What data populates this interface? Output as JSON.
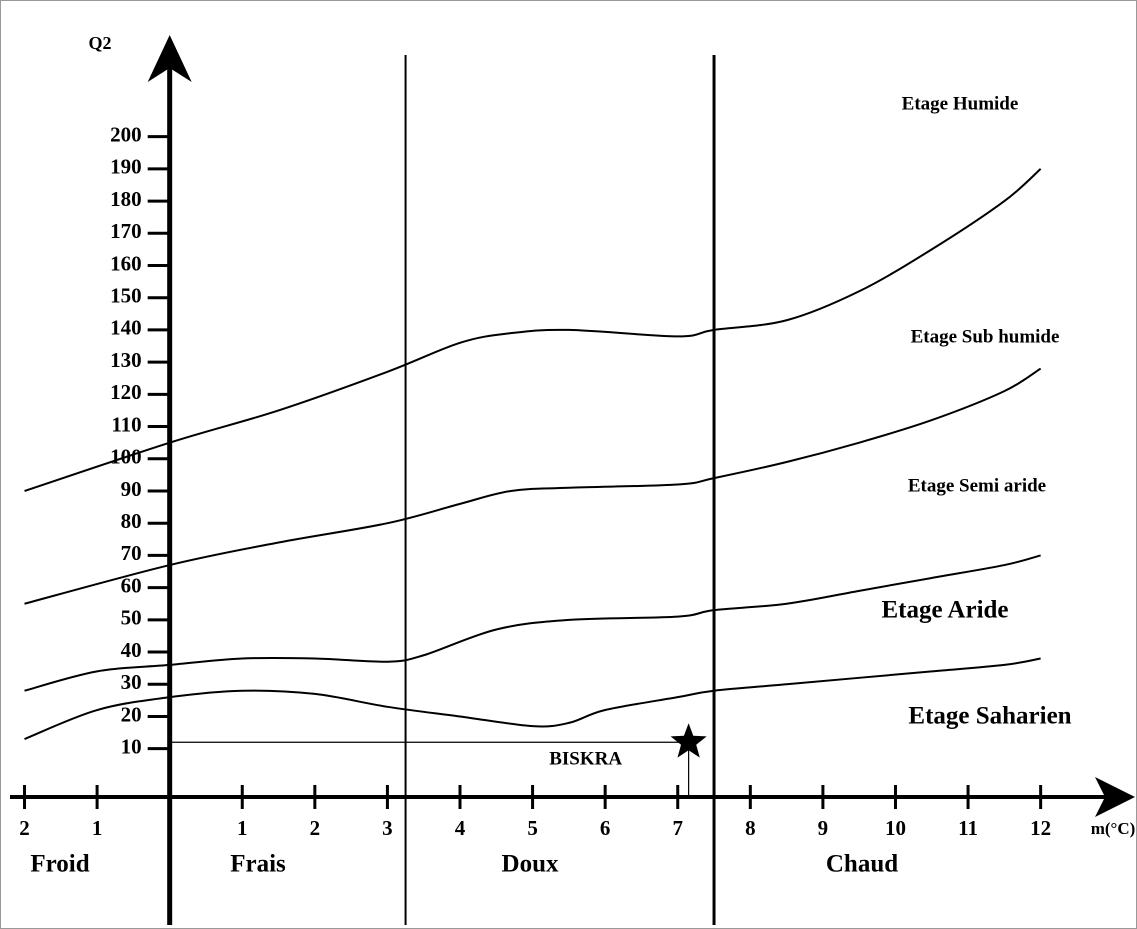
{
  "chart_data": {
    "type": "line",
    "xlabel": "m(°C)",
    "ylabel": "Q2",
    "xlim": [
      -2.2,
      13.3
    ],
    "ylim": [
      -5,
      230
    ],
    "xticks": [
      {
        "value": -2,
        "label": "2"
      },
      {
        "value": -1,
        "label": "1"
      },
      1,
      2,
      3,
      4,
      5,
      6,
      7,
      8,
      9,
      10,
      11,
      12
    ],
    "yticks": [
      10,
      20,
      30,
      40,
      50,
      60,
      70,
      80,
      90,
      100,
      110,
      120,
      130,
      140,
      150,
      160,
      170,
      180,
      190,
      200
    ],
    "color": "#000000",
    "series": [
      {
        "x": [
          -2,
          0,
          1.5,
          3,
          4,
          4.7,
          5.5,
          7,
          7.5,
          8.5,
          9.5,
          10.5,
          11.5,
          12
        ],
        "values": [
          90,
          105,
          115,
          127,
          136,
          139,
          140,
          138,
          140,
          143,
          152,
          165,
          180,
          190
        ]
      },
      {
        "x": [
          -2,
          0,
          1.5,
          3,
          4,
          4.7,
          5.5,
          7,
          7.5,
          8.5,
          9.5,
          10.5,
          11.5,
          12
        ],
        "values": [
          55,
          67,
          74,
          80,
          86,
          90,
          91,
          92,
          94,
          99,
          105,
          112,
          121,
          128
        ]
      },
      {
        "x": [
          -2,
          -1,
          0,
          1,
          2,
          3,
          3.5,
          4.5,
          5.5,
          7,
          7.5,
          8.5,
          9.5,
          10.5,
          11.5,
          12
        ],
        "values": [
          28,
          34,
          36,
          38,
          38,
          37,
          39,
          47,
          50,
          51,
          53,
          55,
          59,
          63,
          67,
          70
        ]
      },
      {
        "x": [
          -2,
          -1,
          0,
          1,
          2,
          3,
          4,
          5,
          5.5,
          6,
          7,
          7.5,
          8.5,
          9.5,
          10.5,
          11.5,
          12
        ],
        "values": [
          13,
          22,
          26,
          28,
          27,
          23,
          20,
          17,
          18,
          22,
          26,
          28,
          30,
          32,
          34,
          36,
          38
        ]
      }
    ],
    "boundaries": [
      3.25,
      7.5
    ],
    "zones": [
      "Froid",
      "Frais",
      "Doux",
      "Chaud"
    ],
    "stages": [
      "Etage Humide",
      "Etage Sub humide",
      "Etage Semi aride",
      "Etage Aride",
      "Etage Saharien"
    ],
    "point": {
      "label": "BISKRA",
      "x": 7.15,
      "y": 12
    }
  }
}
